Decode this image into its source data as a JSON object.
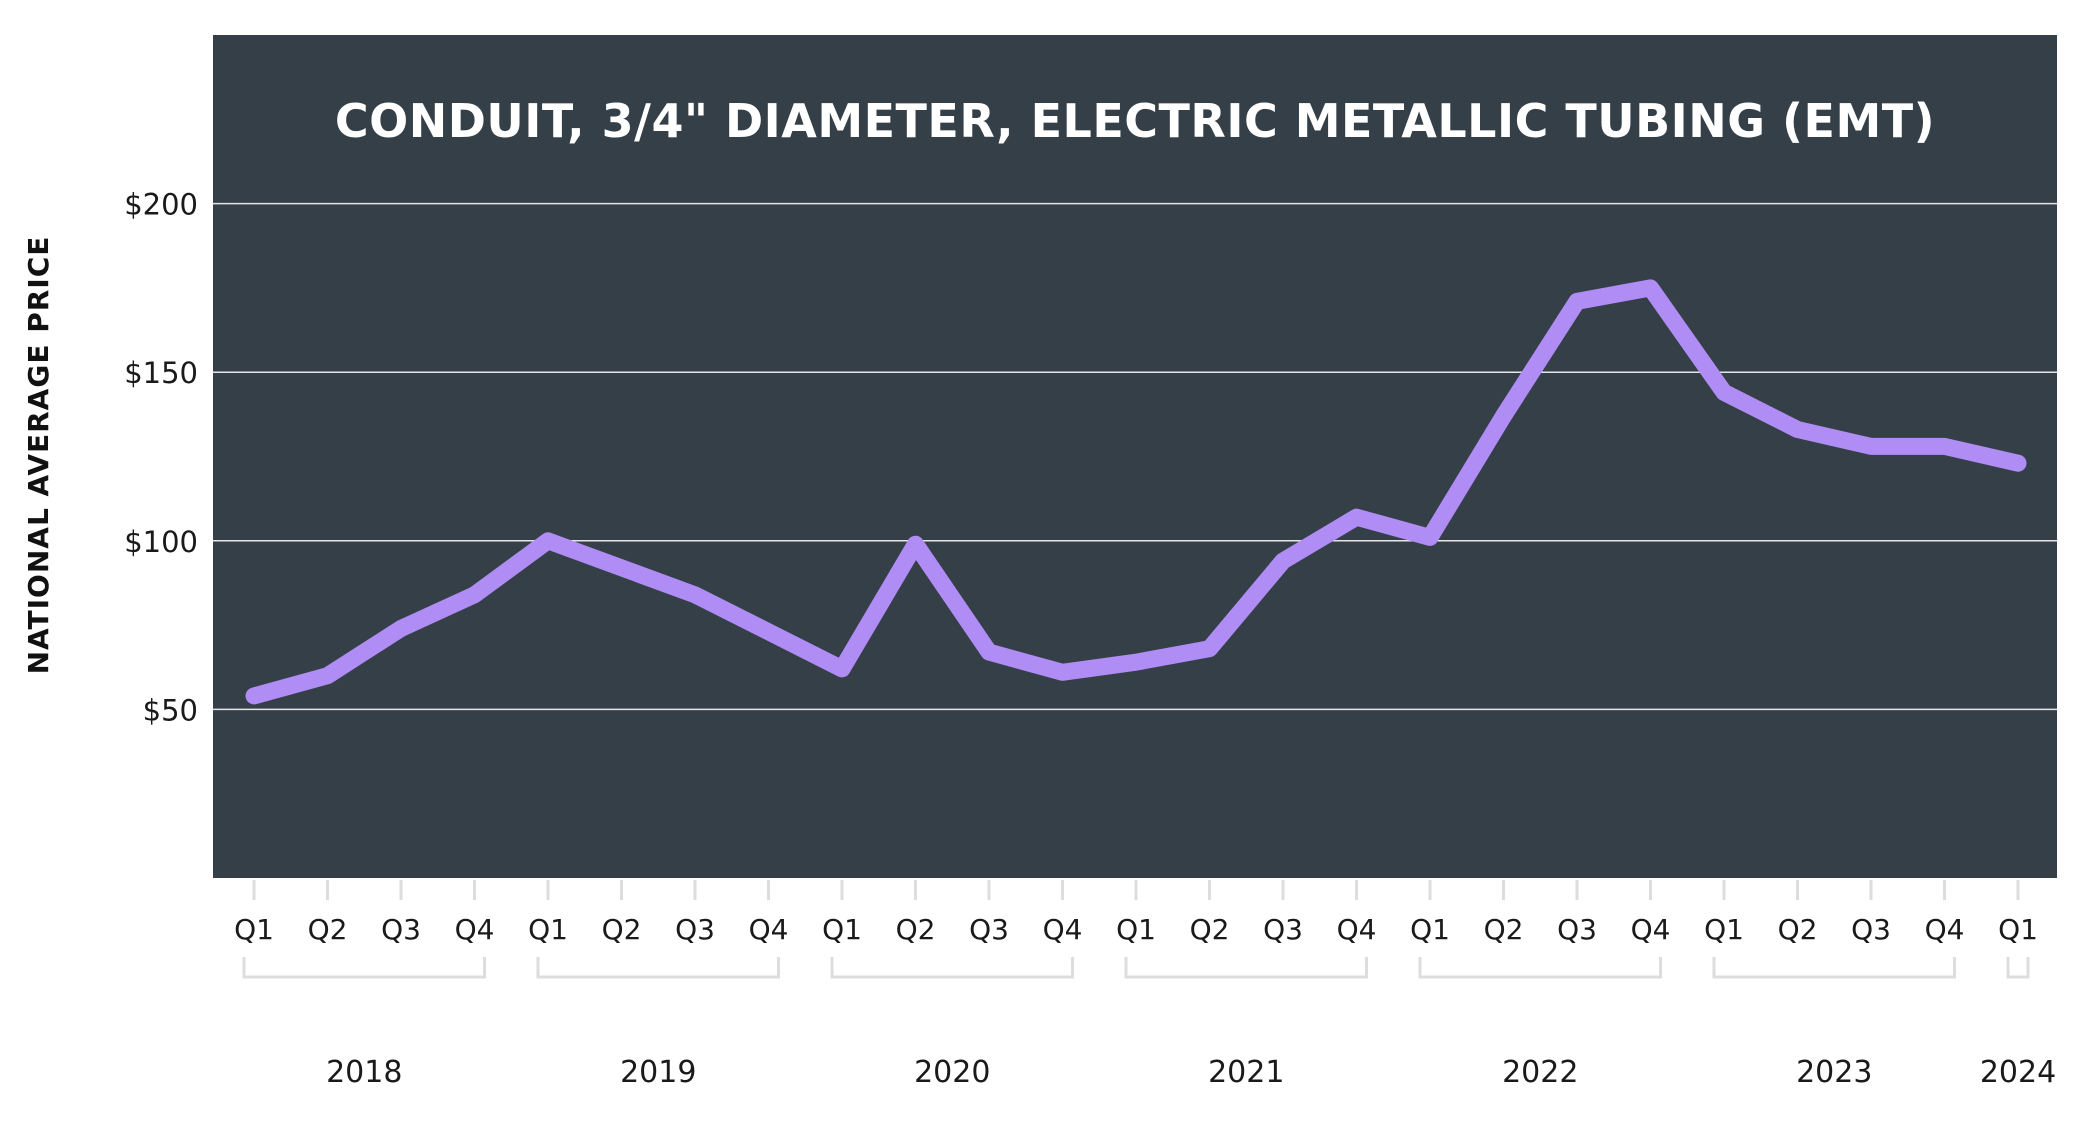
{
  "chart_data": {
    "type": "line",
    "title": "CONDUIT, 3/4\" DIAMETER, ELECTRIC METALLIC TUBING (EMT)",
    "ylabel": "NATIONAL AVERAGE PRICE",
    "xlabel": "",
    "ylim": [
      0,
      250
    ],
    "y_ticks": [
      {
        "value": 50,
        "label": "$50"
      },
      {
        "value": 100,
        "label": "$100"
      },
      {
        "value": 150,
        "label": "$150"
      },
      {
        "value": 200,
        "label": "$200"
      }
    ],
    "grid": true,
    "categories": [
      "Q1",
      "Q2",
      "Q3",
      "Q4",
      "Q1",
      "Q2",
      "Q3",
      "Q4",
      "Q1",
      "Q2",
      "Q3",
      "Q4",
      "Q1",
      "Q2",
      "Q3",
      "Q4",
      "Q1",
      "Q2",
      "Q3",
      "Q4",
      "Q1",
      "Q2",
      "Q3",
      "Q4",
      "Q1"
    ],
    "years": [
      {
        "label": "2018",
        "start": 0,
        "end": 3
      },
      {
        "label": "2019",
        "start": 4,
        "end": 7
      },
      {
        "label": "2020",
        "start": 8,
        "end": 11
      },
      {
        "label": "2021",
        "start": 12,
        "end": 15
      },
      {
        "label": "2022",
        "start": 16,
        "end": 19
      },
      {
        "label": "2023",
        "start": 20,
        "end": 23
      },
      {
        "label": "2024",
        "start": 24,
        "end": 24
      }
    ],
    "series": [
      {
        "values": [
          54,
          60,
          74,
          84,
          100,
          92,
          84,
          73,
          62,
          99,
          67,
          61,
          64,
          68,
          94,
          107,
          101,
          137,
          171,
          175,
          144,
          133,
          128,
          128,
          123
        ]
      }
    ],
    "colors": {
      "background": "#353f48",
      "line": "#b08cf5",
      "grid": "#e6e6e6",
      "bracket": "#dddddd"
    }
  }
}
